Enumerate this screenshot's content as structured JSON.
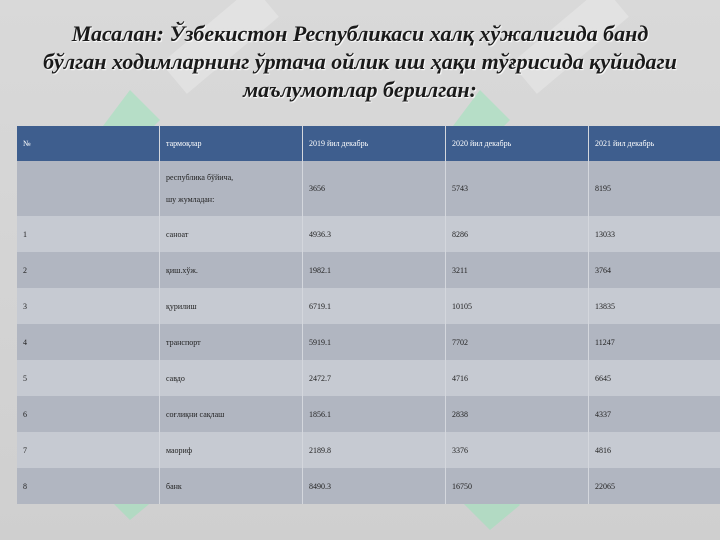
{
  "header": {
    "title": "Масалан: Ўзбекистон Республикаси халқ хўжалигида банд бўлган ходимларнинг ўртача ойлик иш ҳақи тўғрисида қуйидаги маълумотлар берилган:"
  },
  "table": {
    "columns": [
      "№",
      "тармоқлар",
      "2019 йил декабрь",
      "2020 йил декабрь",
      "2021 йил декабрь"
    ],
    "rows": [
      {
        "branch": [
          "республика бўйича,",
          "шу жумладан:"
        ],
        "values": [
          3656,
          5743,
          8195
        ]
      },
      {
        "num": 1,
        "branch": "саноат",
        "values": [
          4936.3,
          8286,
          13033
        ]
      },
      {
        "num": 2,
        "branch": "қиш.хўж.",
        "values": [
          1982.1,
          3211,
          3764
        ]
      },
      {
        "num": 3,
        "branch": "қурилиш",
        "values": [
          6719.1,
          10105,
          13835
        ]
      },
      {
        "num": 4,
        "branch": "транспорт",
        "values": [
          5919.1,
          7702,
          11247
        ]
      },
      {
        "num": 5,
        "branch": "савдо",
        "values": [
          2472.7,
          4716,
          6645
        ]
      },
      {
        "num": 6,
        "branch": "соғлиқни сақлаш",
        "values": [
          1856.1,
          2838,
          4337
        ]
      },
      {
        "num": 7,
        "branch": "маориф",
        "values": [
          2189.8,
          3376,
          4816
        ]
      },
      {
        "num": 8,
        "branch": "банк",
        "values": [
          8490.3,
          16750,
          22065
        ]
      }
    ]
  }
}
